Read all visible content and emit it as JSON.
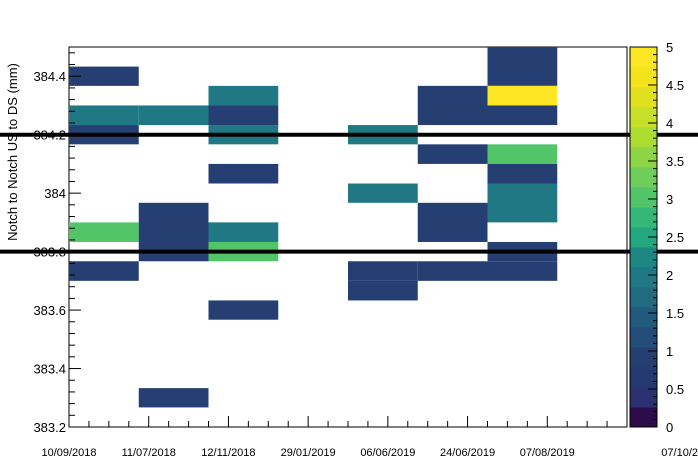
{
  "chart_data": {
    "type": "heatmap",
    "title": "",
    "xlabel": "",
    "ylabel": "Notch to Notch US to DS (mm)",
    "x_tick_labels": [
      "10/09/2018",
      "11/07/2018",
      "12/11/2018",
      "29/01/2019",
      "06/06/2019",
      "24/06/2019",
      "07/08/2019",
      "07/10/2"
    ],
    "y_tick_labels": [
      "383.2",
      "383.4",
      "383.6",
      "383.8",
      "384",
      "384.2",
      "384.4"
    ],
    "y_range": [
      383.2,
      384.5
    ],
    "y_bin_width": 0.0667,
    "z_range": [
      0,
      5
    ],
    "z_tick_labels": [
      "0",
      "0.5",
      "1",
      "1.5",
      "2",
      "2.5",
      "3",
      "3.5",
      "4",
      "4.5",
      "5"
    ],
    "palette": [
      "#2e0b4b",
      "#2a3070",
      "#24396f",
      "#253f73",
      "#234c79",
      "#225a7d",
      "#206a82",
      "#1f7883",
      "#1d8883",
      "#22a77f",
      "#35b779",
      "#52c569",
      "#6fce5b",
      "#8dd545",
      "#aadc32",
      "#c6df28",
      "#e0df1e",
      "#f4e21a",
      "#fde725"
    ],
    "reference_lines_y": [
      384.2,
      383.8
    ],
    "x_bins_count": 8,
    "cells": [
      {
        "xbin": 0,
        "ylow": 384.367,
        "yhigh": 384.433,
        "value": 1
      },
      {
        "xbin": 0,
        "ylow": 384.233,
        "yhigh": 384.3,
        "value": 2
      },
      {
        "xbin": 0,
        "ylow": 384.167,
        "yhigh": 384.233,
        "value": 1
      },
      {
        "xbin": 0,
        "ylow": 383.833,
        "yhigh": 383.9,
        "value": 3
      },
      {
        "xbin": 0,
        "ylow": 383.7,
        "yhigh": 383.767,
        "value": 1
      },
      {
        "xbin": 1,
        "ylow": 384.233,
        "yhigh": 384.3,
        "value": 2
      },
      {
        "xbin": 1,
        "ylow": 383.767,
        "yhigh": 383.967,
        "value": 1
      },
      {
        "xbin": 1,
        "ylow": 383.267,
        "yhigh": 383.333,
        "value": 1
      },
      {
        "xbin": 2,
        "ylow": 384.3,
        "yhigh": 384.367,
        "value": 2
      },
      {
        "xbin": 2,
        "ylow": 384.233,
        "yhigh": 384.3,
        "value": 1
      },
      {
        "xbin": 2,
        "ylow": 384.167,
        "yhigh": 384.233,
        "value": 2
      },
      {
        "xbin": 2,
        "ylow": 384.033,
        "yhigh": 384.1,
        "value": 1
      },
      {
        "xbin": 2,
        "ylow": 383.833,
        "yhigh": 383.9,
        "value": 2
      },
      {
        "xbin": 2,
        "ylow": 383.767,
        "yhigh": 383.833,
        "value": 3
      },
      {
        "xbin": 2,
        "ylow": 383.567,
        "yhigh": 383.633,
        "value": 1
      },
      {
        "xbin": 4,
        "ylow": 384.167,
        "yhigh": 384.233,
        "value": 2
      },
      {
        "xbin": 4,
        "ylow": 383.967,
        "yhigh": 384.033,
        "value": 2
      },
      {
        "xbin": 4,
        "ylow": 383.7,
        "yhigh": 383.767,
        "value": 1
      },
      {
        "xbin": 4,
        "ylow": 383.633,
        "yhigh": 383.7,
        "value": 1
      },
      {
        "xbin": 5,
        "ylow": 384.233,
        "yhigh": 384.367,
        "value": 1
      },
      {
        "xbin": 5,
        "ylow": 384.1,
        "yhigh": 384.167,
        "value": 1
      },
      {
        "xbin": 5,
        "ylow": 383.833,
        "yhigh": 383.967,
        "value": 1
      },
      {
        "xbin": 5,
        "ylow": 383.7,
        "yhigh": 383.767,
        "value": 1
      },
      {
        "xbin": 6,
        "ylow": 384.367,
        "yhigh": 384.5,
        "value": 1
      },
      {
        "xbin": 6,
        "ylow": 384.3,
        "yhigh": 384.367,
        "value": 5
      },
      {
        "xbin": 6,
        "ylow": 384.233,
        "yhigh": 384.3,
        "value": 1
      },
      {
        "xbin": 6,
        "ylow": 384.1,
        "yhigh": 384.167,
        "value": 3
      },
      {
        "xbin": 6,
        "ylow": 384.033,
        "yhigh": 384.1,
        "value": 1
      },
      {
        "xbin": 6,
        "ylow": 383.9,
        "yhigh": 384.033,
        "value": 2
      },
      {
        "xbin": 6,
        "ylow": 383.767,
        "yhigh": 383.833,
        "value": 1
      },
      {
        "xbin": 6,
        "ylow": 383.7,
        "yhigh": 383.767,
        "value": 1
      }
    ]
  }
}
